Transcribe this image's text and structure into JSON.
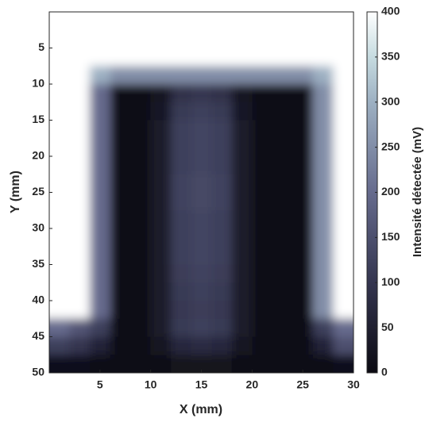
{
  "chart_data": {
    "type": "heatmap",
    "xlabel": "X (mm)",
    "ylabel": "Y (mm)",
    "colorbar_label": "Intensité détectée (mV)",
    "xlim": [
      0,
      30
    ],
    "xticks": [
      5,
      10,
      15,
      20,
      25,
      30
    ],
    "ylim": [
      0,
      50
    ],
    "yticks": [
      5,
      10,
      15,
      20,
      25,
      30,
      35,
      40,
      45,
      50
    ],
    "y_reversed": true,
    "clim": [
      0,
      400
    ],
    "cticks": [
      0,
      50,
      100,
      150,
      200,
      250,
      300,
      350,
      400
    ],
    "colormap": [
      {
        "value": 0,
        "color": "#0b0a12"
      },
      {
        "value": 100,
        "color": "#34354f"
      },
      {
        "value": 200,
        "color": "#666b8d"
      },
      {
        "value": 300,
        "color": "#9db0c2"
      },
      {
        "value": 350,
        "color": "#c6dbe0"
      },
      {
        "value": 400,
        "color": "#ffffff"
      }
    ],
    "x": [
      1,
      3,
      5,
      7,
      9,
      11,
      13,
      15,
      17,
      19,
      21,
      23,
      25,
      27,
      29
    ],
    "y": [
      1.25,
      3.75,
      6.25,
      8.75,
      11.25,
      13.75,
      16.25,
      18.75,
      21.25,
      23.75,
      26.25,
      28.75,
      31.25,
      33.75,
      36.25,
      38.75,
      41.25,
      43.75,
      46.25,
      48.75
    ],
    "z": [
      [
        400,
        400,
        400,
        400,
        400,
        400,
        400,
        400,
        400,
        400,
        400,
        400,
        400,
        400,
        400
      ],
      [
        400,
        400,
        400,
        400,
        400,
        400,
        400,
        400,
        400,
        400,
        400,
        400,
        400,
        400,
        400
      ],
      [
        400,
        400,
        400,
        400,
        400,
        400,
        400,
        400,
        400,
        400,
        400,
        400,
        400,
        400,
        400
      ],
      [
        400,
        400,
        300,
        250,
        250,
        250,
        250,
        250,
        250,
        250,
        250,
        250,
        250,
        300,
        400
      ],
      [
        400,
        400,
        200,
        10,
        10,
        30,
        90,
        100,
        90,
        30,
        10,
        10,
        10,
        250,
        400
      ],
      [
        400,
        400,
        200,
        10,
        10,
        35,
        110,
        120,
        110,
        35,
        10,
        10,
        10,
        250,
        400
      ],
      [
        400,
        400,
        200,
        10,
        10,
        40,
        120,
        130,
        120,
        40,
        10,
        10,
        10,
        250,
        400
      ],
      [
        400,
        400,
        200,
        10,
        10,
        40,
        120,
        130,
        120,
        40,
        10,
        10,
        10,
        250,
        400
      ],
      [
        400,
        400,
        200,
        10,
        10,
        40,
        120,
        130,
        120,
        40,
        10,
        10,
        10,
        250,
        400
      ],
      [
        400,
        400,
        200,
        10,
        10,
        40,
        125,
        135,
        125,
        40,
        10,
        10,
        10,
        250,
        400
      ],
      [
        400,
        400,
        200,
        10,
        10,
        40,
        125,
        135,
        125,
        40,
        10,
        10,
        10,
        250,
        400
      ],
      [
        400,
        400,
        200,
        10,
        10,
        40,
        120,
        130,
        120,
        40,
        10,
        10,
        10,
        250,
        400
      ],
      [
        400,
        400,
        200,
        10,
        10,
        40,
        120,
        130,
        120,
        40,
        10,
        10,
        10,
        250,
        400
      ],
      [
        400,
        400,
        200,
        10,
        10,
        40,
        120,
        130,
        120,
        40,
        10,
        10,
        10,
        250,
        400
      ],
      [
        400,
        400,
        200,
        10,
        10,
        40,
        115,
        125,
        115,
        40,
        10,
        10,
        10,
        250,
        400
      ],
      [
        400,
        400,
        200,
        10,
        10,
        40,
        110,
        120,
        110,
        40,
        10,
        10,
        10,
        250,
        400
      ],
      [
        400,
        400,
        200,
        10,
        10,
        40,
        105,
        115,
        105,
        40,
        10,
        10,
        10,
        250,
        400
      ],
      [
        200,
        160,
        120,
        10,
        10,
        40,
        110,
        120,
        110,
        40,
        10,
        10,
        10,
        120,
        200
      ],
      [
        120,
        100,
        60,
        10,
        10,
        30,
        70,
        80,
        70,
        30,
        10,
        10,
        10,
        60,
        150
      ],
      [
        15,
        15,
        10,
        5,
        5,
        10,
        20,
        20,
        20,
        10,
        5,
        5,
        5,
        10,
        15
      ]
    ]
  }
}
